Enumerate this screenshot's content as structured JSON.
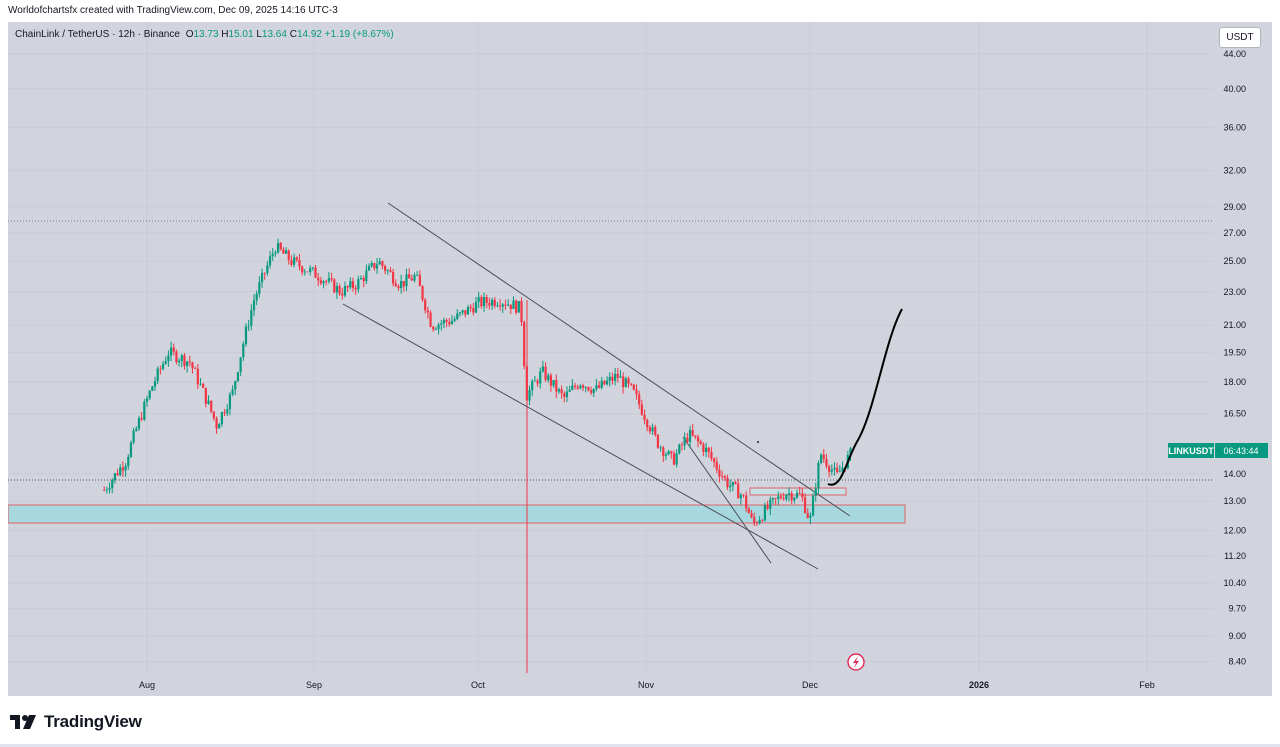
{
  "header": {
    "attribution": "Worldofchartsfx created with TradingView.com, Dec 09, 2025 14:16 UTC-3"
  },
  "legend": {
    "symbol": "ChainLink / TetherUS · 12h · Binance",
    "open_label": "O",
    "open": "13.73",
    "high_label": "H",
    "high": "15.01",
    "low_label": "L",
    "low": "13.64",
    "close_label": "C",
    "close": "14.92",
    "change": "+1.19 (+8.67%)"
  },
  "currency": "USDT",
  "price_tag": {
    "symbol": "LINKUSDT",
    "countdown": "06:43:44"
  },
  "footer": {
    "brand": "TradingView"
  },
  "colors": {
    "up": "#089981",
    "down": "#f23645",
    "zone": "#a8d8df",
    "channel": "#505460"
  },
  "chart_data": {
    "type": "candlestick",
    "instrument": "LINKUSDT",
    "timeframe": "12h",
    "y_axis": {
      "scale": "log",
      "ticks": [
        "44.00",
        "40.00",
        "36.00",
        "32.00",
        "29.00",
        "27.00",
        "25.00",
        "23.00",
        "21.00",
        "19.50",
        "18.00",
        "16.50",
        "14.00",
        "13.00",
        "12.00",
        "11.20",
        "10.40",
        "9.70",
        "9.00",
        "8.40"
      ],
      "range": [
        8.1,
        46.0
      ]
    },
    "x_axis": {
      "ticks": [
        "Aug",
        "Sep",
        "Oct",
        "Nov",
        "Dec",
        "2026",
        "Feb"
      ]
    },
    "last_price": 14.92,
    "reference_level": 28.0,
    "crosshair_level": 13.7,
    "approx_closes": [
      {
        "date": "Jul 24",
        "close": 13.4
      },
      {
        "date": "Jul 28",
        "close": 14.5
      },
      {
        "date": "Aug 2",
        "close": 17.8
      },
      {
        "date": "Aug 5",
        "close": 19.5
      },
      {
        "date": "Aug 9",
        "close": 19.0
      },
      {
        "date": "Aug 14",
        "close": 16.0
      },
      {
        "date": "Aug 17",
        "close": 17.5
      },
      {
        "date": "Aug 21",
        "close": 22.5
      },
      {
        "date": "Aug 25",
        "close": 26.0
      },
      {
        "date": "Aug 28",
        "close": 25.0
      },
      {
        "date": "Sep 2",
        "close": 24.0
      },
      {
        "date": "Sep 6",
        "close": 23.0
      },
      {
        "date": "Sep 9",
        "close": 23.5
      },
      {
        "date": "Sep 13",
        "close": 25.0
      },
      {
        "date": "Sep 17",
        "close": 23.5
      },
      {
        "date": "Sep 20",
        "close": 24.0
      },
      {
        "date": "Sep 23",
        "close": 21.0
      },
      {
        "date": "Sep 27",
        "close": 21.3
      },
      {
        "date": "Oct 1",
        "close": 22.3
      },
      {
        "date": "Oct 5",
        "close": 22.5
      },
      {
        "date": "Oct 9",
        "close": 22.0
      },
      {
        "date": "Oct 10",
        "close": 17.3
      },
      {
        "date": "Oct 13",
        "close": 18.5
      },
      {
        "date": "Oct 17",
        "close": 17.2
      },
      {
        "date": "Oct 20",
        "close": 18.0
      },
      {
        "date": "Oct 23",
        "close": 17.6
      },
      {
        "date": "Oct 27",
        "close": 18.3
      },
      {
        "date": "Oct 30",
        "close": 17.5
      },
      {
        "date": "Nov 3",
        "close": 15.3
      },
      {
        "date": "Nov 6",
        "close": 14.5
      },
      {
        "date": "Nov 9",
        "close": 15.6
      },
      {
        "date": "Nov 12",
        "close": 15.0
      },
      {
        "date": "Nov 16",
        "close": 13.7
      },
      {
        "date": "Nov 19",
        "close": 13.2
      },
      {
        "date": "Nov 21",
        "close": 12.2
      },
      {
        "date": "Nov 24",
        "close": 12.8
      },
      {
        "date": "Nov 27",
        "close": 13.3
      },
      {
        "date": "Nov 30",
        "close": 13.2
      },
      {
        "date": "Dec 1",
        "close": 12.3
      },
      {
        "date": "Dec 3",
        "close": 14.8
      },
      {
        "date": "Dec 6",
        "close": 13.9
      },
      {
        "date": "Dec 9",
        "close": 14.92
      }
    ]
  }
}
